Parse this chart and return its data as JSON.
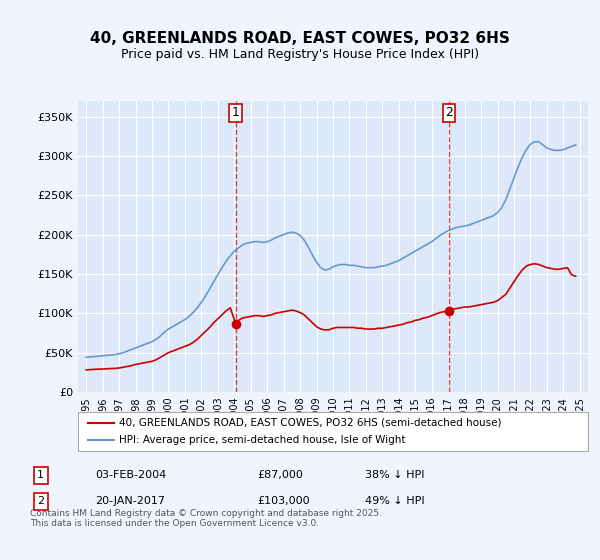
{
  "title": "40, GREENLANDS ROAD, EAST COWES, PO32 6HS",
  "subtitle": "Price paid vs. HM Land Registry's House Price Index (HPI)",
  "background_color": "#f0f4ff",
  "plot_background": "#dde8f8",
  "red_color": "#cc0000",
  "blue_color": "#6699cc",
  "marker1_year": 2004.09,
  "marker2_year": 2017.05,
  "ylim": [
    0,
    370000
  ],
  "yticks": [
    0,
    50000,
    100000,
    150000,
    200000,
    250000,
    300000,
    350000
  ],
  "legend1": "40, GREENLANDS ROAD, EAST COWES, PO32 6HS (semi-detached house)",
  "legend2": "HPI: Average price, semi-detached house, Isle of Wight",
  "annotation1_label": "1",
  "annotation1_date": "03-FEB-2004",
  "annotation1_price": "£87,000",
  "annotation1_hpi": "38% ↓ HPI",
  "annotation2_label": "2",
  "annotation2_date": "20-JAN-2017",
  "annotation2_price": "£103,000",
  "annotation2_hpi": "49% ↓ HPI",
  "footer": "Contains HM Land Registry data © Crown copyright and database right 2025.\nThis data is licensed under the Open Government Licence v3.0.",
  "hpi_data": {
    "years": [
      1995.0,
      1995.25,
      1995.5,
      1995.75,
      1996.0,
      1996.25,
      1996.5,
      1996.75,
      1997.0,
      1997.25,
      1997.5,
      1997.75,
      1998.0,
      1998.25,
      1998.5,
      1998.75,
      1999.0,
      1999.25,
      1999.5,
      1999.75,
      2000.0,
      2000.25,
      2000.5,
      2000.75,
      2001.0,
      2001.25,
      2001.5,
      2001.75,
      2002.0,
      2002.25,
      2002.5,
      2002.75,
      2003.0,
      2003.25,
      2003.5,
      2003.75,
      2004.0,
      2004.25,
      2004.5,
      2004.75,
      2005.0,
      2005.25,
      2005.5,
      2005.75,
      2006.0,
      2006.25,
      2006.5,
      2006.75,
      2007.0,
      2007.25,
      2007.5,
      2007.75,
      2008.0,
      2008.25,
      2008.5,
      2008.75,
      2009.0,
      2009.25,
      2009.5,
      2009.75,
      2010.0,
      2010.25,
      2010.5,
      2010.75,
      2011.0,
      2011.25,
      2011.5,
      2011.75,
      2012.0,
      2012.25,
      2012.5,
      2012.75,
      2013.0,
      2013.25,
      2013.5,
      2013.75,
      2014.0,
      2014.25,
      2014.5,
      2014.75,
      2015.0,
      2015.25,
      2015.5,
      2015.75,
      2016.0,
      2016.25,
      2016.5,
      2016.75,
      2017.0,
      2017.25,
      2017.5,
      2017.75,
      2018.0,
      2018.25,
      2018.5,
      2018.75,
      2019.0,
      2019.25,
      2019.5,
      2019.75,
      2020.0,
      2020.25,
      2020.5,
      2020.75,
      2021.0,
      2021.25,
      2021.5,
      2021.75,
      2022.0,
      2022.25,
      2022.5,
      2022.75,
      2023.0,
      2023.25,
      2023.5,
      2023.75,
      2024.0,
      2024.25,
      2024.5,
      2024.75
    ],
    "values": [
      44000,
      44500,
      45000,
      45500,
      46000,
      46500,
      47000,
      47500,
      48500,
      50000,
      52000,
      54000,
      56000,
      58000,
      60000,
      62000,
      64000,
      67000,
      71000,
      76000,
      80000,
      83000,
      86000,
      89000,
      92000,
      96000,
      101000,
      107000,
      114000,
      122000,
      131000,
      140000,
      149000,
      158000,
      166000,
      173000,
      179000,
      183000,
      187000,
      189000,
      190000,
      191000,
      191000,
      190000,
      191000,
      193000,
      196000,
      198000,
      200000,
      202000,
      203000,
      202000,
      199000,
      193000,
      184000,
      174000,
      165000,
      158000,
      155000,
      156000,
      159000,
      161000,
      162000,
      162000,
      161000,
      161000,
      160000,
      159000,
      158000,
      158000,
      158000,
      159000,
      160000,
      161000,
      163000,
      165000,
      167000,
      170000,
      173000,
      176000,
      179000,
      182000,
      185000,
      188000,
      191000,
      195000,
      199000,
      202000,
      205000,
      207000,
      209000,
      210000,
      211000,
      212000,
      214000,
      216000,
      218000,
      220000,
      222000,
      224000,
      228000,
      234000,
      244000,
      258000,
      272000,
      286000,
      298000,
      308000,
      315000,
      318000,
      318000,
      314000,
      310000,
      308000,
      307000,
      307000,
      308000,
      310000,
      312000,
      314000
    ]
  },
  "red_data": {
    "years": [
      1995.0,
      1995.25,
      1995.5,
      1995.75,
      1996.0,
      1996.25,
      1996.5,
      1996.75,
      1997.0,
      1997.25,
      1997.5,
      1997.75,
      1998.0,
      1998.25,
      1998.5,
      1998.75,
      1999.0,
      1999.25,
      1999.5,
      1999.75,
      2000.0,
      2000.25,
      2000.5,
      2000.75,
      2001.0,
      2001.25,
      2001.5,
      2001.75,
      2002.0,
      2002.25,
      2002.5,
      2002.75,
      2003.0,
      2003.25,
      2003.5,
      2003.75,
      2004.09,
      2004.09,
      2004.25,
      2004.5,
      2004.75,
      2005.0,
      2005.25,
      2005.5,
      2005.75,
      2006.0,
      2006.25,
      2006.5,
      2006.75,
      2007.0,
      2007.25,
      2007.5,
      2007.75,
      2008.0,
      2008.25,
      2008.5,
      2008.75,
      2009.0,
      2009.25,
      2009.5,
      2009.75,
      2010.0,
      2010.25,
      2010.5,
      2010.75,
      2011.0,
      2011.25,
      2011.5,
      2011.75,
      2012.0,
      2012.25,
      2012.5,
      2012.75,
      2013.0,
      2013.25,
      2013.5,
      2013.75,
      2014.0,
      2014.25,
      2014.5,
      2014.75,
      2015.0,
      2015.25,
      2015.5,
      2015.75,
      2016.0,
      2016.25,
      2016.5,
      2016.75,
      2017.05,
      2017.05,
      2017.25,
      2017.5,
      2017.75,
      2018.0,
      2018.25,
      2018.5,
      2018.75,
      2019.0,
      2019.25,
      2019.5,
      2019.75,
      2020.0,
      2020.25,
      2020.5,
      2020.75,
      2021.0,
      2021.25,
      2021.5,
      2021.75,
      2022.0,
      2022.25,
      2022.5,
      2022.75,
      2023.0,
      2023.25,
      2023.5,
      2023.75,
      2024.0,
      2024.25,
      2024.5,
      2024.75
    ],
    "values": [
      28000,
      28500,
      28800,
      29000,
      29200,
      29500,
      29800,
      30000,
      30500,
      31500,
      32500,
      33500,
      35000,
      36000,
      37000,
      38000,
      39000,
      41000,
      44000,
      47000,
      50000,
      52000,
      54000,
      56000,
      58000,
      60000,
      63000,
      67000,
      72000,
      77000,
      82000,
      88000,
      93000,
      98000,
      103000,
      107000,
      87000,
      87000,
      91000,
      94000,
      95000,
      96000,
      97000,
      97000,
      96000,
      97000,
      98000,
      100000,
      101000,
      102000,
      103000,
      104000,
      103000,
      101000,
      98000,
      93000,
      88000,
      83000,
      80000,
      79000,
      79000,
      81000,
      82000,
      82000,
      82000,
      82000,
      82000,
      81000,
      81000,
      80000,
      80000,
      80000,
      81000,
      81000,
      82000,
      83000,
      84000,
      85000,
      86000,
      88000,
      89000,
      91000,
      92000,
      94000,
      95000,
      97000,
      99000,
      101000,
      102000,
      103000,
      103000,
      105000,
      106000,
      107000,
      108000,
      108000,
      109000,
      110000,
      111000,
      112000,
      113000,
      114000,
      116000,
      120000,
      124000,
      132000,
      140000,
      148000,
      155000,
      160000,
      162000,
      163000,
      162000,
      160000,
      158000,
      157000,
      156000,
      156000,
      157000,
      158000,
      149000,
      147000
    ]
  }
}
